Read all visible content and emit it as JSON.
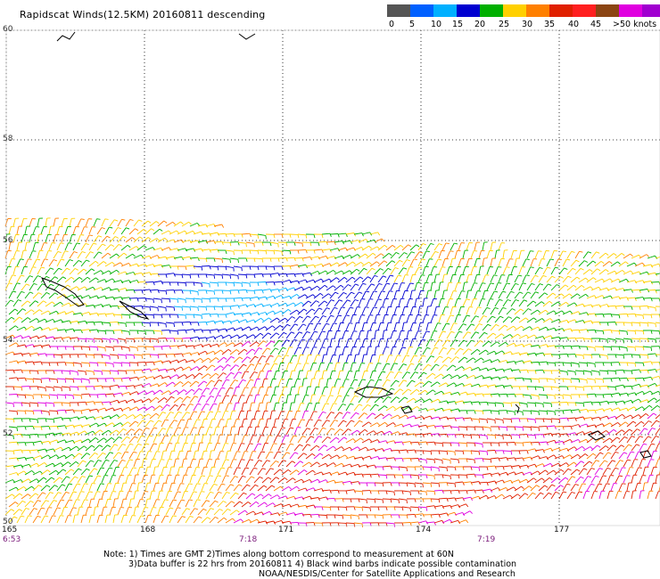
{
  "title": "Rapidscat Winds(12.5KM) 20160811 descending",
  "legend": {
    "colors": [
      "#555555",
      "#0060ff",
      "#00b0ff",
      "#0000d0",
      "#00b000",
      "#ffd000",
      "#ff8000",
      "#e02000",
      "#ff2020",
      "#8b4513",
      "#e000e0",
      "#a000d0",
      "#600080"
    ],
    "labels": [
      "0",
      "5",
      "10",
      "15",
      "20",
      "25",
      "30",
      "35",
      "40",
      "45",
      ">50 knots"
    ]
  },
  "lat_labels": [
    "60",
    "58",
    "56",
    "54",
    "52",
    "50"
  ],
  "lon_labels": [
    "165",
    "168",
    "171",
    "174",
    "177"
  ],
  "time_labels": [
    "6:53",
    "7:18",
    "7:19"
  ],
  "notes": [
    "Note: 1) Times are GMT 2)Times along bottom correspond to measurement at 60N",
    "3)Data buffer is 22 hrs from 20160811 4) Black wind barbs indicate possible contamination",
    "NOAA/NESDIS/Center for Satellite Applications and Research"
  ]
}
